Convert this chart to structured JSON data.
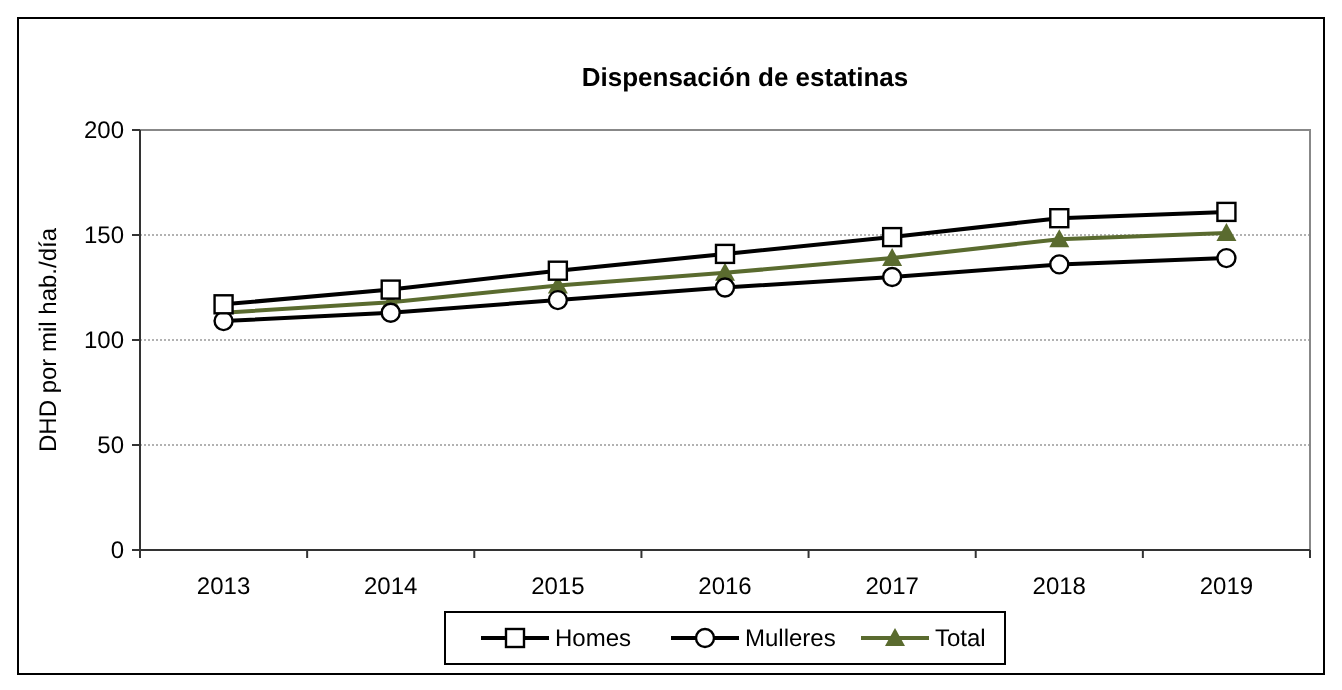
{
  "chart_data": {
    "type": "line",
    "title": "Dispensación de estatinas",
    "ylabel": "DHD por mil hab./día",
    "categories": [
      "2013",
      "2014",
      "2015",
      "2016",
      "2017",
      "2018",
      "2019"
    ],
    "series": [
      {
        "name": "Homes",
        "color": "#000000",
        "marker": "square",
        "values": [
          117,
          124,
          133,
          141,
          149,
          158,
          161
        ]
      },
      {
        "name": "Mulleres",
        "color": "#000000",
        "marker": "circle",
        "values": [
          109,
          113,
          119,
          125,
          130,
          136,
          139
        ]
      },
      {
        "name": "Total",
        "color": "#5a6b2f",
        "marker": "triangle",
        "values": [
          113,
          118,
          126,
          132,
          139,
          148,
          151
        ]
      }
    ],
    "ylim": [
      0,
      200
    ],
    "yticks": [
      0,
      50,
      100,
      150,
      200
    ],
    "grid": "y",
    "legend": "bottom"
  }
}
